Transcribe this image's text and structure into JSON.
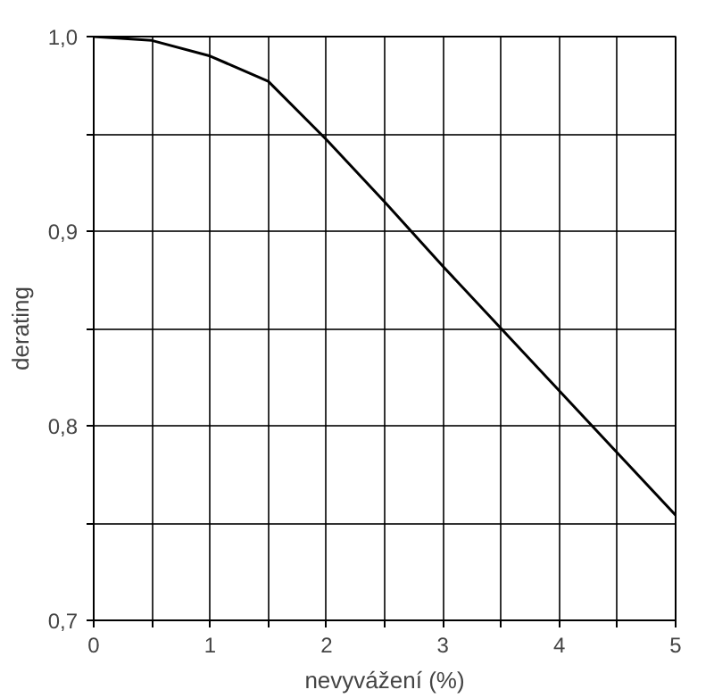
{
  "chart_data": {
    "type": "line",
    "xlabel": "nevyvážení (%)",
    "ylabel": "derating",
    "x": [
      0,
      0.5,
      1,
      1.5,
      2,
      2.5,
      3,
      3.5,
      4,
      4.5,
      5
    ],
    "series": [
      {
        "color": "#000000",
        "values": [
          1.0,
          0.998,
          0.99,
          0.977,
          0.947,
          0.915,
          0.882,
          0.85,
          0.818,
          0.786,
          0.754
        ]
      }
    ],
    "xlim": [
      0,
      5
    ],
    "ylim": [
      0.7,
      1.0
    ],
    "xticks": [
      0,
      {
        "value": 0.5,
        "label": null
      },
      1,
      {
        "value": 1.5,
        "label": null
      },
      2,
      {
        "value": 2.5,
        "label": null
      },
      3,
      {
        "value": 3.5,
        "label": null
      },
      4,
      {
        "value": 4.5,
        "label": null
      },
      5
    ],
    "yticks": [
      {
        "value": 0.7,
        "label": "0,7"
      },
      {
        "value": 0.75,
        "label": null
      },
      {
        "value": 0.8,
        "label": "0,8"
      },
      {
        "value": 0.85,
        "label": null
      },
      {
        "value": 0.9,
        "label": "0,9"
      },
      {
        "value": 0.95,
        "label": null
      },
      {
        "value": 1.0,
        "label": "1,0"
      }
    ],
    "grid": true,
    "marker": "none",
    "line_style": "solid"
  }
}
